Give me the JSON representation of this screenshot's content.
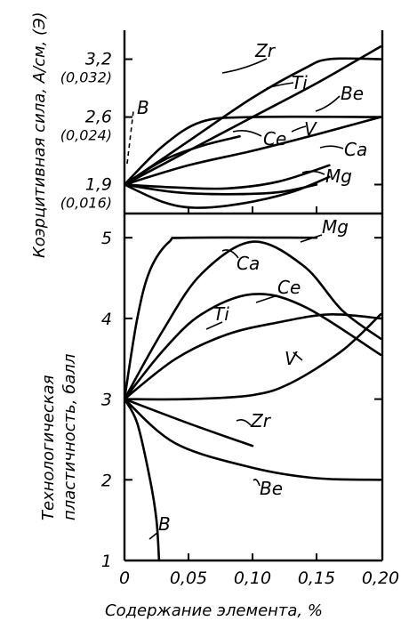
{
  "chart_data": [
    {
      "type": "line",
      "panel": "top",
      "ylabel": "Коэрцитивная сила, А/см, (Э)",
      "xlim": [
        0,
        0.2
      ],
      "ylim": [
        1.6,
        3.5
      ],
      "yticks": [
        {
          "value": 1.9,
          "label": "1,9",
          "sub": "(0,016)"
        },
        {
          "value": 2.6,
          "label": "2,6",
          "sub": "(0,024)"
        },
        {
          "value": 3.2,
          "label": "3,2",
          "sub": "(0,032)"
        }
      ],
      "series": [
        {
          "name": "Zr",
          "points": [
            [
              0,
              1.9
            ],
            [
              0.05,
              2.35
            ],
            [
              0.1,
              2.8
            ],
            [
              0.14,
              3.1
            ],
            [
              0.16,
              3.2
            ],
            [
              0.2,
              3.2
            ]
          ]
        },
        {
          "name": "Ti",
          "points": [
            [
              0,
              1.9
            ],
            [
              0.05,
              2.25
            ],
            [
              0.1,
              2.6
            ],
            [
              0.15,
              2.95
            ],
            [
              0.2,
              3.33
            ]
          ]
        },
        {
          "name": "Be",
          "points": [
            [
              0,
              1.9
            ],
            [
              0.03,
              2.3
            ],
            [
              0.06,
              2.55
            ],
            [
              0.1,
              2.6
            ],
            [
              0.2,
              2.6
            ]
          ]
        },
        {
          "name": "Ce",
          "points": [
            [
              0,
              1.9
            ],
            [
              0.03,
              2.15
            ],
            [
              0.06,
              2.3
            ],
            [
              0.09,
              2.4
            ]
          ]
        },
        {
          "name": "V",
          "points": [
            [
              0,
              1.9
            ],
            [
              0.05,
              2.1
            ],
            [
              0.1,
              2.25
            ],
            [
              0.15,
              2.42
            ],
            [
              0.2,
              2.6
            ]
          ]
        },
        {
          "name": "Ca",
          "points": [
            [
              0,
              1.9
            ],
            [
              0.04,
              1.87
            ],
            [
              0.08,
              1.86
            ],
            [
              0.12,
              1.93
            ],
            [
              0.16,
              2.1
            ]
          ]
        },
        {
          "name": "Mg",
          "points": [
            [
              0,
              1.9
            ],
            [
              0.04,
              1.82
            ],
            [
              0.08,
              1.8
            ],
            [
              0.12,
              1.82
            ],
            [
              0.15,
              1.9
            ]
          ]
        },
        {
          "name": "",
          "points": [
            [
              0,
              1.9
            ],
            [
              0.03,
              1.72
            ],
            [
              0.055,
              1.66
            ],
            [
              0.09,
              1.7
            ],
            [
              0.13,
              1.82
            ],
            [
              0.16,
              1.98
            ]
          ]
        }
      ],
      "annotations": [
        "B"
      ]
    },
    {
      "type": "line",
      "panel": "bottom",
      "xlabel": "Содержание элемента, %",
      "ylabel": "Технологическая пластичность, балл",
      "xlim": [
        0,
        0.2
      ],
      "ylim": [
        1,
        5.3
      ],
      "xticks": [
        {
          "value": 0,
          "label": "0"
        },
        {
          "value": 0.05,
          "label": "0,05"
        },
        {
          "value": 0.1,
          "label": "0,10"
        },
        {
          "value": 0.15,
          "label": "0,15"
        },
        {
          "value": 0.2,
          "label": "0,20"
        }
      ],
      "yticks": [
        {
          "value": 1,
          "label": "1"
        },
        {
          "value": 2,
          "label": "2"
        },
        {
          "value": 3,
          "label": "3"
        },
        {
          "value": 4,
          "label": "4"
        },
        {
          "value": 5,
          "label": "5"
        }
      ],
      "series": [
        {
          "name": "Mg",
          "points": [
            [
              0,
              3
            ],
            [
              0.01,
              4.0
            ],
            [
              0.02,
              4.6
            ],
            [
              0.035,
              4.95
            ],
            [
              0.05,
              5.0
            ],
            [
              0.15,
              5.0
            ]
          ]
        },
        {
          "name": "Ca",
          "points": [
            [
              0,
              3
            ],
            [
              0.03,
              3.85
            ],
            [
              0.06,
              4.55
            ],
            [
              0.1,
              4.95
            ],
            [
              0.14,
              4.65
            ],
            [
              0.17,
              4.1
            ],
            [
              0.2,
              3.75
            ]
          ]
        },
        {
          "name": "Ce",
          "points": [
            [
              0,
              3
            ],
            [
              0.03,
              3.6
            ],
            [
              0.06,
              4.05
            ],
            [
              0.1,
              4.3
            ],
            [
              0.14,
              4.15
            ],
            [
              0.2,
              3.55
            ]
          ]
        },
        {
          "name": "Ti",
          "points": [
            [
              0,
              3
            ],
            [
              0.04,
              3.5
            ],
            [
              0.08,
              3.8
            ],
            [
              0.12,
              3.95
            ],
            [
              0.16,
              4.05
            ],
            [
              0.2,
              4.0
            ]
          ]
        },
        {
          "name": "V",
          "points": [
            [
              0,
              3
            ],
            [
              0.05,
              3.0
            ],
            [
              0.1,
              3.05
            ],
            [
              0.13,
              3.2
            ],
            [
              0.17,
              3.6
            ],
            [
              0.2,
              4.05
            ]
          ]
        },
        {
          "name": "Zr",
          "points": [
            [
              0,
              3
            ],
            [
              0.05,
              2.7
            ],
            [
              0.1,
              2.42
            ]
          ]
        },
        {
          "name": "Be",
          "points": [
            [
              0,
              3
            ],
            [
              0.04,
              2.45
            ],
            [
              0.1,
              2.15
            ],
            [
              0.15,
              2.02
            ],
            [
              0.2,
              2.0
            ]
          ]
        },
        {
          "name": "B",
          "points": [
            [
              0,
              3
            ],
            [
              0.01,
              2.7
            ],
            [
              0.02,
              2.0
            ],
            [
              0.025,
              1.5
            ],
            [
              0.027,
              1.0
            ]
          ]
        }
      ]
    }
  ]
}
